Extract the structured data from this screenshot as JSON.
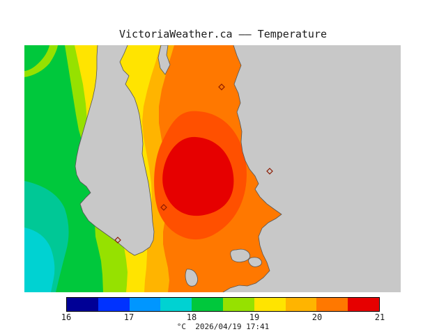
{
  "title": "VictoriaWeather.ca —— Temperature",
  "palette": {
    "water_gray": "#c8c8c8",
    "coast": "#555555",
    "marker": "#8b1a00",
    "navy": "#000096",
    "blue": "#0032ff",
    "azure": "#0096ff",
    "cyan": "#00d2d2",
    "teal": "#00c896",
    "green": "#00c83c",
    "yellow_green": "#96e100",
    "yellow": "#ffe400",
    "light_orange": "#ffb400",
    "orange": "#ff7800",
    "dark_orange": "#ff5000",
    "red": "#e60000"
  },
  "colorbar": {
    "min": 16,
    "max": 21,
    "units": "°C",
    "tick_labels": [
      "16",
      "17",
      "18",
      "19",
      "20",
      "21"
    ],
    "colors": [
      "#000096",
      "#0032ff",
      "#0096ff",
      "#00d2d2",
      "#00c83c",
      "#96e100",
      "#ffe400",
      "#ffb400",
      "#ff7800",
      "#e60000"
    ]
  },
  "footer": {
    "units_label": "°C",
    "datetime": "2026/04/19 17:41"
  }
}
